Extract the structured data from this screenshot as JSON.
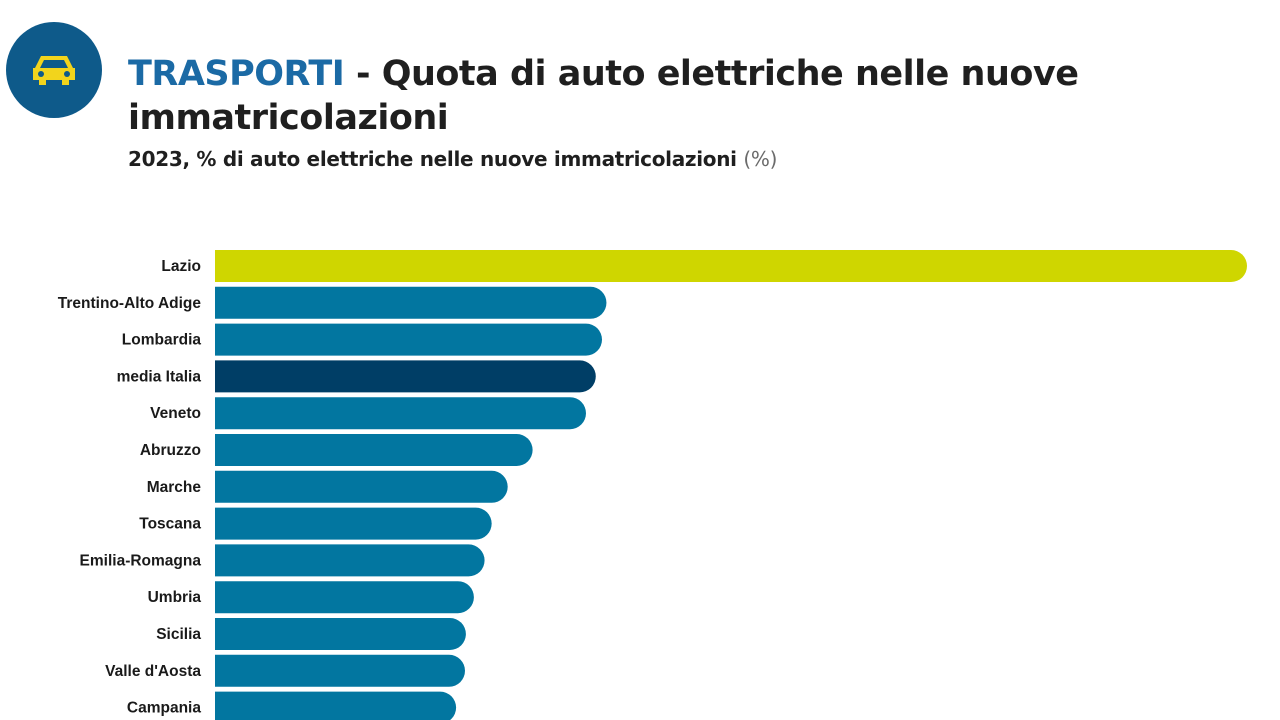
{
  "header": {
    "icon": "car-icon",
    "title_keyword": "TRASPORTI",
    "title_rest": " - Quota di auto elettriche nelle nuove immatricolazioni",
    "subtitle": "2023, % di auto elettriche nelle nuove immatricolazioni",
    "unit": "(%)"
  },
  "colors": {
    "icon_bg": "#0e5a8a",
    "icon_fg": "#f2d41c",
    "highlight": "#cfd600",
    "default": "#0276a0",
    "average": "#003e66"
  },
  "chart_data": {
    "type": "bar",
    "orientation": "horizontal",
    "title": "TRASPORTI - Quota di auto elettriche nelle nuove immatricolazioni",
    "subtitle": "2023, % di auto elettriche nelle nuove immatricolazioni (%)",
    "categories": [
      "Lazio",
      "Trentino-Alto Adige",
      "Lombardia",
      "media Italia",
      "Veneto",
      "Abruzzo",
      "Marche",
      "Toscana",
      "Emilia-Romagna",
      "Umbria",
      "Sicilia",
      "Valle d'Aosta",
      "Campania"
    ],
    "values": [
      11.6,
      4.4,
      4.35,
      4.28,
      4.17,
      3.57,
      3.29,
      3.11,
      3.03,
      2.91,
      2.82,
      2.81,
      2.71
    ],
    "highlight": [
      "Lazio"
    ],
    "average_category": "media Italia",
    "xlim": [
      0,
      11.6
    ],
    "grid": false,
    "legend": "none"
  }
}
